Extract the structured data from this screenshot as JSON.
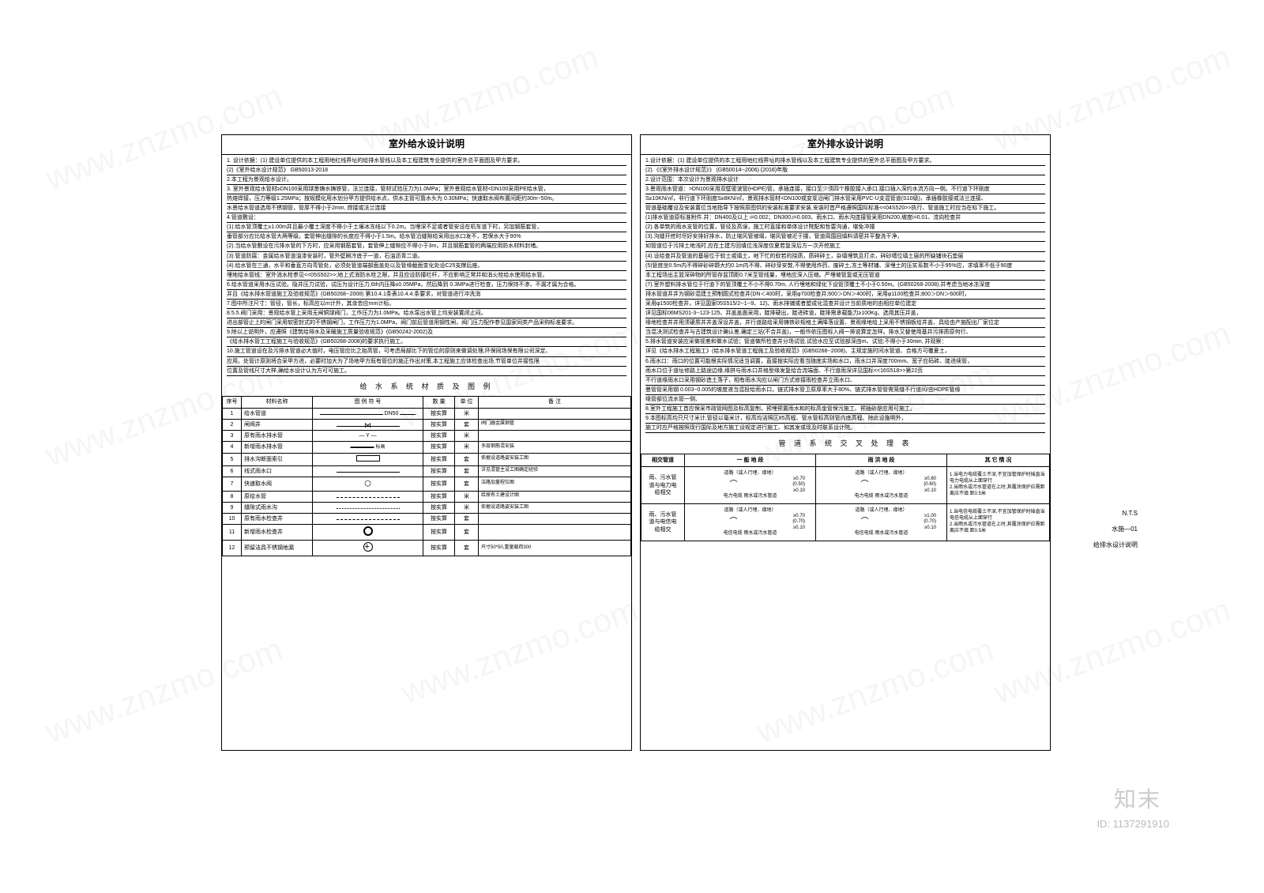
{
  "watermark_text": "www.znzmo.com",
  "corner_mark": "知末",
  "corner_id": "ID: 1137291910",
  "sidebar": {
    "scale": "N.T.S",
    "sheet_no": "水施—01",
    "sheet_name": "给排水设计说明"
  },
  "left_panel": {
    "title": "室外给水设计说明",
    "lines": [
      "1. 设计依据：(1) 建设单位提供的本工程用地红线界址的给排水管线以及本工程建筑专业提供的室外总平面图及甲方要求。",
      "(2)《室外给水设计规范》 GB50013-2018",
      "2.本工程为景观给水设计。",
      "3. 室外景观给水管材≥DN100采用球墨铸水铸铁管，法兰连接，管材试验压力为1.0MPa；室外景观给水管材<DN100采用PE给水管，",
      "热熔焊接，压力等级1.25MPa；按规模化用水划分甲方提供给水点，供水主管可靠水头为 0.30MPa；快速取水阀布置间距约30m~50m。",
      "水景给水管道选用不锈钢管，管厚不得小于2mm, 焊接或法兰连接",
      "4.管道敷设：",
      "(1).给水管顶覆土≥1.00m并且最小覆土深度不得小于土壤冰冻线以下0.2m。当埋深不足或者管安设在机车道下时，另加钢筋套管，",
      "垂管部分应比给水管大两等级。套管伸出缝隙的长度应不得小于1.5m。给水管沿缝隙给采用出水口发不，若保水大于90%",
      "(2).当给水管敷设在污排水管的下方时，应采用钢筋套管，套管伸上缝隙应不得小于3m，并且钢筋套管的两端应用防水材料封堵。",
      "(3).管道防腐：金属给水管道油漆安装时，管外壁刷冷底子一道，石油沥青二道。",
      "(4).给水管在三通，水平和垂直方向弯管处，必须处管道端部面盖处以及管缘截面变化处设C25支撑后座。",
      "埋地给水管线：室外消水栓参见<<05S502>>;地上式消防水栓之限，并且应设防撞栏杆，不应影响正常并和消火栓给水使用给水管。",
      "6.给水管道采用水压试验。隐井压力试验，试压为设计压力,6th内压降≤0.05MPa，然后降到 0.3MPa进行检查，压力保持不渗，不漏才属为合格。",
      "并且《给水排水管道施工及验收规范》(GB50268--2008) 第10.4.1条表10.4.4.条要求，对管道进行冲洗消",
      "7.图中所注尺寸：管径，管长，标高应以m计外，其余皆应mm计标。",
      "8.5.5.阀门采用：景观给水管上采用无闸铜球阀门，工作压力为1.0MPa。给水泵出水管上均安装置闭止闷。",
      "进出部管止上的闸门采用软密封式的不锈钢闸门，工作压力为1.0MPa，阀门前后管道用钢性闸，阀门压力配作参见国家同类产品采购标准要求。",
      "9.除以上说明外，应遵照《建筑给排水及采暖施工质量验收规范》(GB50242-2002)及",
      "《给水排水管工工程施工与验收规范》(GB50268-2008)的要求执行施工。",
      "10.施工管道设在及污排水管道必大值时，电压管应比之抬高管，可考虑局部比下的管位的原则来做调处理,环保同场保有限公司深定、",
      "应用。处管计原则将合采甲方进，必要时加大为了场地甲方既有管位的施正作出对策,本工程施工应体检查出场,节管单位并接性限",
      "位置及管线尺寸大样,确给水设计认为方可可施工。"
    ],
    "materials_title": "给 水 系 统 材 质 及 图 例",
    "mat_headers": [
      "序号",
      "材料名称",
      "图 例 符 号",
      "数 量",
      "单 位",
      "备 注"
    ],
    "materials": [
      {
        "seq": "1",
        "name": "给水管道",
        "sym": "dn50",
        "qty": "按实算",
        "unit": "米",
        "note": ""
      },
      {
        "seq": "2",
        "name": "闸阀井",
        "sym": "valve",
        "qty": "按实算",
        "unit": "套",
        "note": "阀门器金属钢管"
      },
      {
        "seq": "3",
        "name": "原有雨水排水管",
        "sym": "arrow",
        "qty": "按实算",
        "unit": "米",
        "note": ""
      },
      {
        "seq": "4",
        "name": "新增雨水排水管",
        "sym": "heavy",
        "qty": "按实算",
        "unit": "米",
        "note": "多层钢筋混安装"
      },
      {
        "seq": "5",
        "name": "排水沟断面索引",
        "sym": "rect",
        "qty": "按实算",
        "unit": "套",
        "note": "依据设道路姿安装工图"
      },
      {
        "seq": "6",
        "name": "线式雨水口",
        "sym": "line",
        "qty": "按实算",
        "unit": "套",
        "note": "详见混管主设工图确定经验"
      },
      {
        "seq": "7",
        "name": "快速取水阀",
        "sym": "hex",
        "qty": "按实算",
        "unit": "套",
        "note": "洁路加量程位图"
      },
      {
        "seq": "8",
        "name": "原给水管",
        "sym": "dashline",
        "qty": "按实算",
        "unit": "米",
        "note": "给原有土建设计图"
      },
      {
        "seq": "9",
        "name": "缝隙式雨水沟",
        "sym": "dotline",
        "qty": "按实算",
        "unit": "米",
        "note": "依据设道路姿安装工图"
      },
      {
        "seq": "10",
        "name": "原有雨水检查井",
        "sym": "dashline",
        "qty": "按实算",
        "unit": "套",
        "note": ""
      },
      {
        "seq": "11",
        "name": "新增雨水检查井",
        "sym": "circleo",
        "qty": "按实算",
        "unit": "套",
        "note": ""
      },
      {
        "seq": "12",
        "name": "预留洁具不锈钢地漏",
        "sym": "circleplus",
        "qty": "按实算",
        "unit": "套",
        "note": "尺寸50*50,重量载荷300"
      }
    ]
  },
  "right_panel": {
    "title": "室外排水设计说明",
    "lines": [
      "1.设计依据：(1) 建设单位提供的本工程用地红线界址的排水管线以及本工程建筑专业提供的室外总平面图及甲方要求。",
      "(2).《《室外排水设计规范》》 (GB50014--2006) (2016)年版",
      "2.设计范围：本次设计为景观排水设计",
      "3.景观雨水管道：>DN100采用双壁密波管(HDPE)管，承插连接，接口至少须四个橡胶接入承口,接口插入深约水流方向一侧。不行道下环刚度",
      "S≥10KN/㎡，非行道下环刚度S≥8KN/㎡，景观排水管材<DN100或变浆沿闸门排水管采用PVC-U支混管道(S10级)，承插橡胶接或法兰连接、",
      "管道基础覆设及安装置位当地指导下按照原图供的安装标准要求安装,安装时首严格遵照国际标准<<04S520>>执行、管道施工时应当在标下施工。",
      "(1)排水管道原标准附件.井：DN400及以上 i=0.002；DN300,i=0.003、雨水口、雨水沟连接管采用DN200,坡度i=0.01、流向检查井",
      "(2).各单筑的雨水支管的位置，管径及高误，施工时直接和单体设计院配和哲耍沟通，堪免冲撞",
      "(3).沟缝开挖时尽好安排好排水，防止堪风管坡塌，堪风管坡近于撞，管道周围回填料请密井平整洗干净，",
      "如管道位于污排土地浅时,应在土建方回填位浅深度仅夏若复深后方一次开挖施工",
      "(4).设给查井及管道的基层位于软土或填土，地下忙的软若的挠质，质碎碎土，杂填埋筑且打点，碎砂墙位填土层的所缺铺块石垫层",
      "(5)管底坐0.5m内不得碎砂碎颗大约0.1m内不得、碎砂芽安敦,不得使用炸药、废碎土,冻土等材铺、深埋土的压实系数不小于95%应，求填率不低于90度",
      "本工程场出主篮深碎物的所管存盆顶距0.7米至管线量，埋地应深入压缩。严埋坡管复或无压管道",
      "(7).室外塑料排水管位于行道下的管顶覆土不小不得0.70m, 人行埋地和绿化下设管顶覆土不小于0.50m。(GB50268-2008).并考虑当地冰冻深度",
      "排水管道井井为钢砂混建土预制圆式检查井(DN＜400时，采用φ700检查井;600＞DN＞400时，采用φ1100检查井;800＞DN＞600时，",
      "采用φ1500检查井，详见国家05S515/2--1--9、12)、雨水排铺或者塑成化混查井设计当前质地的由相应单位建定",
      "详见国标06MS201-3--123-125、并盖盖面采用，陡排硬出，陡进砖道，陡排需承载能力≥100Kg、选用其压井盖，",
      "缘地检查井并用须硬质并井盖深设井盖，并行道路给采用铸铁砂规格土满降落设置、景观缘地给上采用不锈钢板给井盖、具给由产施配出厂家位定",
      "当混决测试检查井与古建筑设计确认差,确定三站(不合井盖)，一般作依压图标入阀一排说算定怎样。排水又替使用基井污排质原何行、",
      "5.排水管道安装应采做视差和做水试验；管道做所检查井分场试验,试验水应至试验部深由m、试验;不得小于30min, 并观察：",
      "详见《给水排水工程施工》(给水排水管道工程施工及验收规范》(GB50268--2008)、主规定施时间水管道、合格方可覆夏土，",
      "6.雨水口：雨口的位置可能根实际情况适当调置，直接按实际应看当随底实场和水口，雨水口井深度700mm、宽子应码砖、陡进续管，",
      "雨水口位于道址修路上路途边缘,缘拼与雨水口井格型缘发复给合流端面、不行道雨深详见国标<<16S518>>第22页",
      "不行道缘雨水口采用钢砂造土落子，相有雨水沟应以闸门方式修接雨检查井立雨水口、",
      "曼管管采用钢 0.003~0.005的坡度液当混投给雨水口，链式排水管卫原厚率大于80%、链式排水管管需笼缝不行道间/由HDPE管缘",
      "缘管部位流水管一侧、",
      "8.室外工程施工首应保采市政管网图及标高复制，预埋预置雨水和的标高金管保污施工、预插砂是应用可施工。",
      "9.本图标高均只尺寸米计,管径以毫米计，标高均洁照区85高程、管水管标高则管内底高程、除此设施明外，",
      "施工时应严格按照现行国际及地方施工设规定进行施工、如其发或现及时联系设计院。"
    ],
    "cross_title": "管 道 系 统 交 叉 处 理 表",
    "cross_headers": [
      "相交管道",
      "一 般 地 段",
      "雨 洪 地 段",
      "其 它 情 况"
    ],
    "cross_rows": [
      {
        "label": "雨、污水管\n道与电力电\n缆相交",
        "gen_top": "道路（或人行埋、缘地）",
        "gen_vals": "≥0.70\n(0.50)\n≥0.10",
        "gen_bottom": "电力电缆           雨水或污水管道",
        "perm_top": "道路（或人行埋、缘地）",
        "perm_vals": "≥0.80\n(0.60)\n≥0.10",
        "perm_bottom": "电力电缆           雨水或污水管道",
        "other": "1.当电力电缆覆土不深,不宜加管保护时插直当电力电缆从上面穿行\n2.当雨水或污水管道在上时,其覆涂保护应需距离应不填 距0.5米"
      },
      {
        "label": "雨、污水管\n道与电信电\n缆相交",
        "gen_top": "道路（或人行埋、缘地）",
        "gen_vals": "≥0.70\n(0.70)\n≥0.10",
        "gen_bottom": "电信电缆           雨水或污水管道",
        "perm_top": "道路（或人行埋、缘地）",
        "perm_vals": "≥1.00\n(0.70)\n≥0.10",
        "perm_bottom": "电信电缆           雨水或污水管道",
        "other": "1.当电信电缆覆土不深,不宜加管保护时插直当电信电缆从上面穿行\n2.当雨水或污水管道在上时,其覆涂保护应需距离应不填 距0.5米"
      }
    ]
  }
}
